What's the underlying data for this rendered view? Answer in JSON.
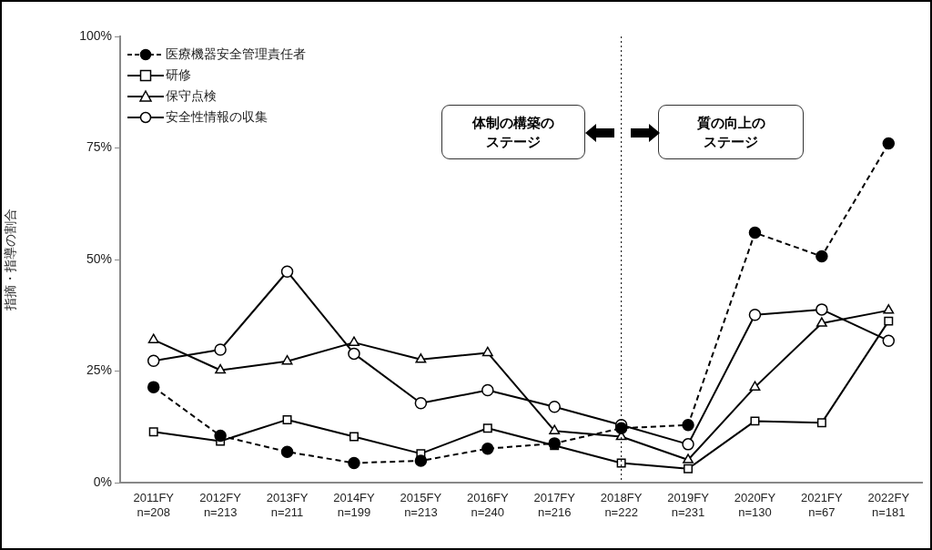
{
  "chart_data": {
    "type": "line",
    "ylabel": "指摘・指導の割合",
    "categories": [
      "2011FY\nn=208",
      "2012FY\nn=213",
      "2013FY\nn=211",
      "2014FY\nn=199",
      "2015FY\nn=213",
      "2016FY\nn=240",
      "2017FY\nn=216",
      "2018FY\nn=222",
      "2019FY\nn=231",
      "2020FY\nn=130",
      "2021FY\nn=67",
      "2022FY\nn=181"
    ],
    "series": [
      {
        "name": "医療機器安全管理責任者",
        "color": "#000000",
        "marker": "circle",
        "line_style": "dashed",
        "values": [
          21.4,
          10.5,
          6.9,
          4.4,
          4.9,
          7.6,
          8.8,
          12.2,
          12.9,
          56,
          50.7,
          76
        ]
      },
      {
        "name": "研修",
        "color": "#000000",
        "marker": "square",
        "line_style": "solid",
        "values": [
          11.4,
          9.3,
          14.1,
          10.3,
          6.5,
          12.2,
          8.3,
          4.4,
          3.1,
          13.8,
          13.4,
          36.2
        ]
      },
      {
        "name": "保守点検",
        "color": "#000000",
        "marker": "triangle",
        "line_style": "solid",
        "values": [
          32,
          25.2,
          27.2,
          31.4,
          27.6,
          29.1,
          11.6,
          10.3,
          5.1,
          21.4,
          35.7,
          38.6
        ]
      },
      {
        "name": "安全性情報の収集",
        "color": "#000000",
        "marker": "circle",
        "line_style": "solid",
        "values": [
          27.3,
          29.8,
          47.3,
          28.9,
          17.8,
          20.7,
          17,
          12.9,
          8.6,
          37.6,
          38.8,
          31.8
        ]
      }
    ],
    "ylim": [
      0,
      100
    ],
    "yticks": [
      {
        "value": 0,
        "label": "0%"
      },
      {
        "value": 25,
        "label": "25%"
      },
      {
        "value": 50,
        "label": "50%"
      },
      {
        "value": 75,
        "label": "75%"
      },
      {
        "value": 100,
        "label": "100%"
      }
    ],
    "grid": false,
    "legend": "top left",
    "ref_lines": [
      {
        "axis": "x",
        "value": "2018FY\nn=222",
        "line_style": "dotted",
        "color": "#000000"
      }
    ],
    "annotations": [
      "体制の構築のステージ",
      "質の向上のステージ"
    ]
  }
}
